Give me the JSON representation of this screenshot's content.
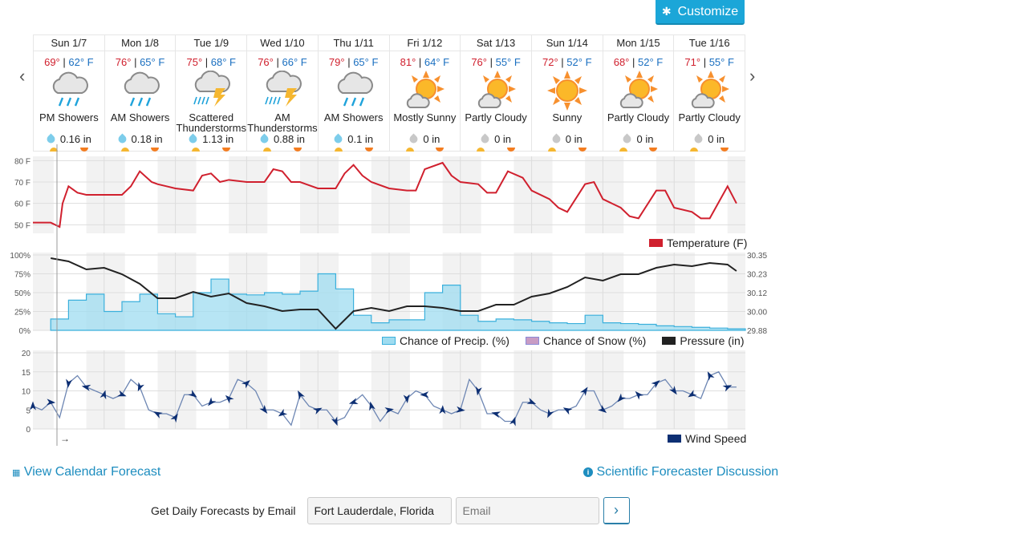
{
  "toolbar": {
    "customize_label": "Customize",
    "customize_icon": "gear-icon"
  },
  "nav": {
    "prev": "‹",
    "next": "›"
  },
  "days": [
    {
      "name": "Sun 1/7",
      "hi": "69°",
      "lo": "62° F",
      "icon": "rain-showers",
      "cond": "PM Showers",
      "precip": "0.16 in",
      "wet": true
    },
    {
      "name": "Mon 1/8",
      "hi": "76°",
      "lo": "65° F",
      "icon": "rain-showers",
      "cond": "AM Showers",
      "precip": "0.18 in",
      "wet": true
    },
    {
      "name": "Tue 1/9",
      "hi": "75°",
      "lo": "68° F",
      "icon": "thunderstorm",
      "cond": "Scattered Thunderstorms",
      "precip": "1.13 in",
      "wet": true
    },
    {
      "name": "Wed 1/10",
      "hi": "76°",
      "lo": "66° F",
      "icon": "thunderstorm",
      "cond": "AM Thunderstorms",
      "precip": "0.88 in",
      "wet": true
    },
    {
      "name": "Thu 1/11",
      "hi": "79°",
      "lo": "65° F",
      "icon": "rain-showers",
      "cond": "AM Showers",
      "precip": "0.1 in",
      "wet": true
    },
    {
      "name": "Fri 1/12",
      "hi": "81°",
      "lo": "64° F",
      "icon": "partly-cloudy",
      "cond": "Mostly Sunny",
      "precip": "0 in",
      "wet": false
    },
    {
      "name": "Sat 1/13",
      "hi": "76°",
      "lo": "55° F",
      "icon": "partly-cloudy",
      "cond": "Partly Cloudy",
      "precip": "0 in",
      "wet": false
    },
    {
      "name": "Sun 1/14",
      "hi": "72°",
      "lo": "52° F",
      "icon": "sunny",
      "cond": "Sunny",
      "precip": "0 in",
      "wet": false
    },
    {
      "name": "Mon 1/15",
      "hi": "68°",
      "lo": "52° F",
      "icon": "partly-cloudy",
      "cond": "Partly Cloudy",
      "precip": "0 in",
      "wet": false
    },
    {
      "name": "Tue 1/16",
      "hi": "71°",
      "lo": "55° F",
      "icon": "partly-cloudy",
      "cond": "Partly Cloudy",
      "precip": "0 in",
      "wet": false
    }
  ],
  "colors": {
    "temperature": "#d0202e",
    "precip": "#9fdcf0",
    "precip_line": "#3bb0dc",
    "snow": "#c89cc4",
    "pressure": "#222222",
    "wind": "#0d2f73",
    "accent": "#1ba6d8",
    "link": "#1d8dbf"
  },
  "chart_data": [
    {
      "type": "line",
      "title": "Temperature (F)",
      "ylabel": "F",
      "ylim": [
        46,
        82
      ],
      "yticks": [
        "80 F",
        "70 F",
        "60 F",
        "50 F"
      ],
      "categories": [
        "Sun 1/7",
        "Mon 1/8",
        "Tue 1/9",
        "Wed 1/10",
        "Thu 1/11",
        "Fri 1/12",
        "Sat 1/13",
        "Sun 1/14",
        "Mon 1/15",
        "Tue 1/16"
      ],
      "x_hours": [
        0,
        6,
        9,
        10,
        12,
        15,
        18,
        21,
        24,
        30,
        33,
        36,
        40,
        42,
        45,
        48,
        54,
        57,
        60,
        63,
        66,
        72,
        78,
        81,
        84,
        87,
        90,
        96,
        102,
        105,
        108,
        111,
        114,
        120,
        126,
        129,
        132,
        138,
        141,
        144,
        150,
        153,
        156,
        160,
        165,
        168,
        174,
        177,
        180,
        186,
        189,
        192,
        198,
        201,
        204,
        210,
        213,
        216,
        222,
        225,
        228,
        234,
        237
      ],
      "series": [
        {
          "name": "Temperature (F)",
          "values": [
            51,
            51,
            49,
            60,
            68,
            65,
            64,
            64,
            64,
            64,
            68,
            75,
            70,
            69,
            68,
            67,
            66,
            73,
            74,
            70,
            71,
            70,
            70,
            76,
            75,
            70,
            70,
            67,
            67,
            74,
            78,
            73,
            70,
            67,
            66,
            66,
            76,
            79,
            73,
            70,
            69,
            65,
            65,
            75,
            72,
            66,
            62,
            58,
            56,
            69,
            70,
            62,
            58,
            54,
            53,
            66,
            66,
            58,
            56,
            53,
            53,
            68,
            60
          ]
        }
      ],
      "legend": [
        "Temperature (F)"
      ]
    },
    {
      "type": "area",
      "title": "Chance of Precip. / Snow / Pressure",
      "yticks_left": [
        "100%",
        "75%",
        "50%",
        "25%",
        "0%"
      ],
      "yticks_right": [
        "30.35",
        "30.23",
        "30.12",
        "30.00",
        "29.88"
      ],
      "x_hours": [
        6,
        12,
        18,
        24,
        30,
        36,
        42,
        48,
        54,
        60,
        66,
        72,
        78,
        84,
        90,
        96,
        102,
        108,
        114,
        120,
        126,
        132,
        138,
        144,
        150,
        156,
        162,
        168,
        174,
        180,
        186,
        192,
        198,
        204,
        210,
        216,
        222,
        228,
        234,
        237
      ],
      "series": [
        {
          "name": "Chance of Precip. (%)",
          "axis": "left",
          "values": [
            15,
            40,
            48,
            25,
            38,
            48,
            22,
            18,
            50,
            68,
            48,
            47,
            50,
            48,
            52,
            75,
            55,
            20,
            10,
            14,
            14,
            50,
            60,
            20,
            12,
            15,
            14,
            12,
            10,
            9,
            20,
            10,
            9,
            8,
            6,
            5,
            4,
            3,
            2,
            2
          ]
        },
        {
          "name": "Chance of Snow (%)",
          "axis": "left",
          "values": [
            0,
            0,
            0,
            0,
            0,
            0,
            0,
            0,
            0,
            0,
            0,
            0,
            0,
            0,
            0,
            0,
            0,
            0,
            0,
            0,
            0,
            0,
            0,
            0,
            0,
            0,
            0,
            0,
            0,
            0,
            0,
            0,
            0,
            0,
            0,
            0,
            0,
            0,
            0,
            0
          ]
        },
        {
          "name": "Pressure (in)",
          "axis": "right",
          "values": [
            30.33,
            30.31,
            30.26,
            30.27,
            30.23,
            30.17,
            30.08,
            30.08,
            30.12,
            30.09,
            30.11,
            30.05,
            30.03,
            30.0,
            30.01,
            30.01,
            29.89,
            30.0,
            30.02,
            30.0,
            30.03,
            30.03,
            30.02,
            30.0,
            30.0,
            30.04,
            30.04,
            30.09,
            30.11,
            30.15,
            30.21,
            30.19,
            30.23,
            30.23,
            30.27,
            30.29,
            30.28,
            30.3,
            30.29,
            30.25
          ]
        }
      ],
      "legend": [
        "Chance of Precip. (%)",
        "Chance of Snow (%)",
        "Pressure (in)"
      ]
    },
    {
      "type": "line",
      "title": "Wind Speed",
      "ylim": [
        0,
        20
      ],
      "yticks": [
        "20",
        "15",
        "10",
        "5",
        "0"
      ],
      "x_hours": [
        0,
        3,
        6,
        9,
        12,
        15,
        18,
        21,
        24,
        27,
        30,
        33,
        36,
        39,
        42,
        45,
        48,
        51,
        54,
        57,
        60,
        63,
        66,
        69,
        72,
        75,
        78,
        81,
        84,
        87,
        90,
        93,
        96,
        99,
        102,
        105,
        108,
        111,
        114,
        117,
        120,
        123,
        126,
        129,
        132,
        135,
        138,
        141,
        144,
        147,
        150,
        153,
        156,
        159,
        162,
        165,
        168,
        171,
        174,
        177,
        180,
        183,
        186,
        189,
        192,
        195,
        198,
        201,
        204,
        207,
        210,
        213,
        216,
        219,
        222,
        225,
        228,
        231,
        234,
        237
      ],
      "series": [
        {
          "name": "Wind Speed",
          "values": [
            6,
            5,
            7,
            3,
            12,
            14,
            11,
            10,
            9,
            8,
            9,
            13,
            11,
            5,
            4,
            4,
            3,
            9,
            9,
            6,
            7,
            7,
            8,
            13,
            12,
            10,
            5,
            5,
            4,
            1,
            9,
            6,
            5,
            5,
            2,
            3,
            7,
            9,
            6,
            2,
            5,
            4,
            8,
            10,
            9,
            6,
            5,
            4,
            5,
            13,
            10,
            4,
            4,
            2,
            2,
            7,
            7,
            5,
            4,
            5,
            5,
            6,
            10,
            10,
            5,
            6,
            8,
            8,
            9,
            9,
            12,
            13,
            10,
            10,
            9,
            8,
            14,
            15,
            11,
            11
          ]
        }
      ],
      "legend": [
        "Wind Speed"
      ],
      "direction_indicator": "→"
    }
  ],
  "links": {
    "calendar": "View Calendar Forecast",
    "discussion": "Scientific Forecaster Discussion"
  },
  "email": {
    "label": "Get Daily Forecasts by Email",
    "location": "Fort Lauderdale, Florida",
    "email_placeholder": "Email",
    "submit": "›"
  }
}
